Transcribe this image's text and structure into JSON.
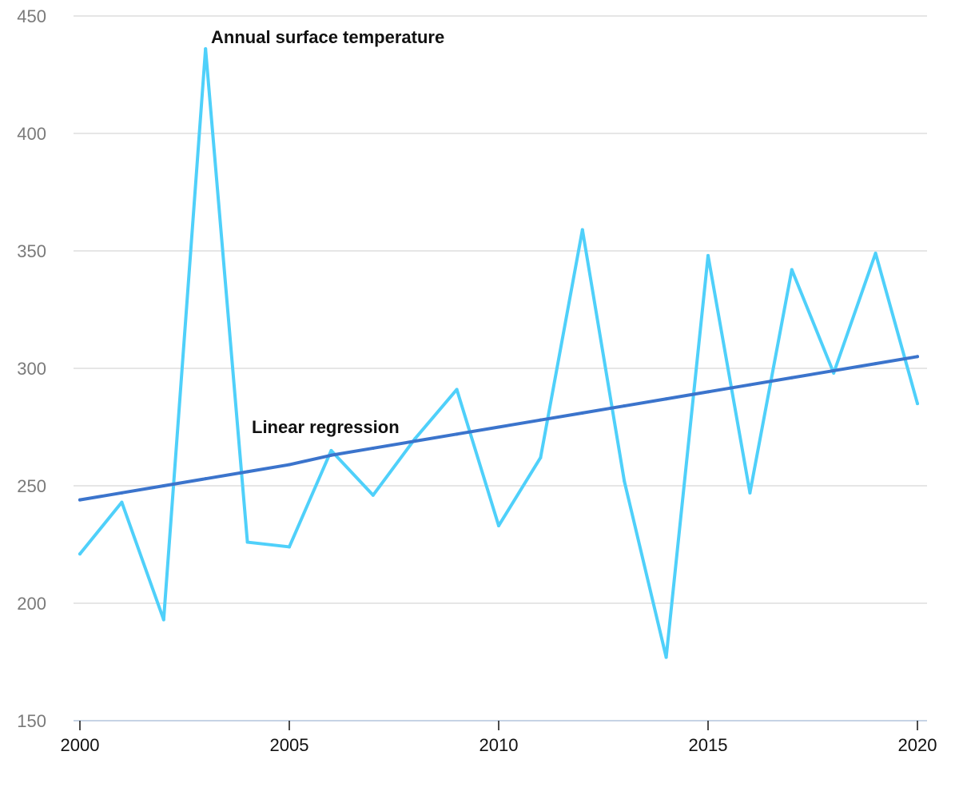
{
  "chart_data": {
    "type": "line",
    "title": "",
    "xlabel": "",
    "ylabel": "",
    "xlim": [
      2000,
      2020
    ],
    "ylim": [
      150,
      450
    ],
    "grid": true,
    "y_ticks": [
      {
        "value": 150,
        "label": "150"
      },
      {
        "value": 200,
        "label": "200"
      },
      {
        "value": 250,
        "label": "250"
      },
      {
        "value": 300,
        "label": "300"
      },
      {
        "value": 350,
        "label": "350"
      },
      {
        "value": 400,
        "label": "400"
      },
      {
        "value": 450,
        "label": "450"
      }
    ],
    "x_ticks": [
      {
        "value": 2000,
        "label": "2000"
      },
      {
        "value": 2005,
        "label": "2005"
      },
      {
        "value": 2010,
        "label": "2010"
      },
      {
        "value": 2015,
        "label": "2015"
      },
      {
        "value": 2020,
        "label": "2020"
      }
    ],
    "x": [
      2000,
      2001,
      2002,
      2003,
      2004,
      2005,
      2006,
      2007,
      2008,
      2009,
      2010,
      2011,
      2012,
      2013,
      2014,
      2015,
      2016,
      2017,
      2018,
      2019,
      2020
    ],
    "series": [
      {
        "name": "Annual surface temperature",
        "color": "#4fd0fa",
        "values": [
          221,
          243,
          193,
          436,
          226,
          224,
          265,
          246,
          270,
          291,
          233,
          262,
          359,
          252,
          177,
          348,
          247,
          342,
          298,
          349,
          285
        ]
      },
      {
        "name": "Linear regression",
        "color": "#3b74cc",
        "values": [
          244,
          247,
          250,
          253,
          256,
          259,
          263,
          266,
          269,
          272,
          275,
          278,
          281,
          284,
          287,
          290,
          293,
          296,
          299,
          302,
          305
        ]
      }
    ],
    "annotations": [
      {
        "text": "Annual surface temperature",
        "series": "Annual surface temperature"
      },
      {
        "text": "Linear regression",
        "series": "Linear regression"
      }
    ],
    "colors": {
      "grid": "#dddddd",
      "axis": "#c6d3e5",
      "y_tick_text": "#7a7a7a",
      "x_tick_text": "#111111"
    }
  }
}
